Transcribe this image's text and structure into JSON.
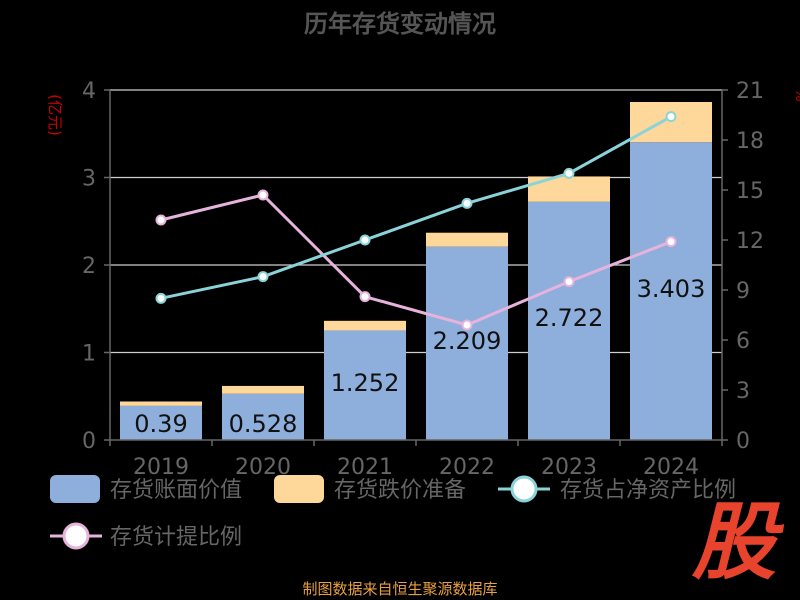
{
  "title": "历年存货变动情况",
  "left_unit": "(亿元)",
  "right_unit": "%",
  "watermark": "股",
  "footer": "制图数据来自恒生聚源数据库",
  "colors": {
    "book_value": "#8eaedc",
    "reserve": "#fdd89a",
    "ratio_net_assets": "#8ad3d9",
    "provision_ratio": "#e6b3dc",
    "axis_text": "#666666",
    "title": "#555555",
    "unit_red": "#cc0000"
  },
  "chart_data": {
    "type": "bar",
    "title": "历年存货变动情况",
    "categories": [
      "2019",
      "2020",
      "2021",
      "2022",
      "2023",
      "2024"
    ],
    "ylim_left": [
      0,
      4
    ],
    "yticks_left": [
      0,
      1,
      2,
      3,
      4
    ],
    "ylim_right": [
      0,
      21
    ],
    "yticks_right": [
      0,
      3,
      6,
      9,
      12,
      15,
      18,
      21
    ],
    "grid": true,
    "legend_position": "bottom",
    "series": [
      {
        "name": "存货账面价值",
        "kind": "bar",
        "axis": "left",
        "stack": "inv",
        "values": [
          0.39,
          0.528,
          1.252,
          2.209,
          2.722,
          3.403
        ],
        "labels": [
          "0.39",
          "0.528",
          "1.252",
          "2.209",
          "2.722",
          "3.403"
        ]
      },
      {
        "name": "存货跌价准备",
        "kind": "bar",
        "axis": "left",
        "stack": "inv",
        "values": [
          0.05,
          0.09,
          0.11,
          0.16,
          0.29,
          0.46
        ]
      },
      {
        "name": "存货占净资产比例",
        "kind": "line",
        "axis": "right",
        "values": [
          8.5,
          9.8,
          12.0,
          14.2,
          16.0,
          19.4
        ]
      },
      {
        "name": "存货计提比例",
        "kind": "line",
        "axis": "right",
        "values": [
          13.2,
          14.7,
          8.6,
          6.9,
          9.5,
          11.9
        ]
      }
    ]
  }
}
